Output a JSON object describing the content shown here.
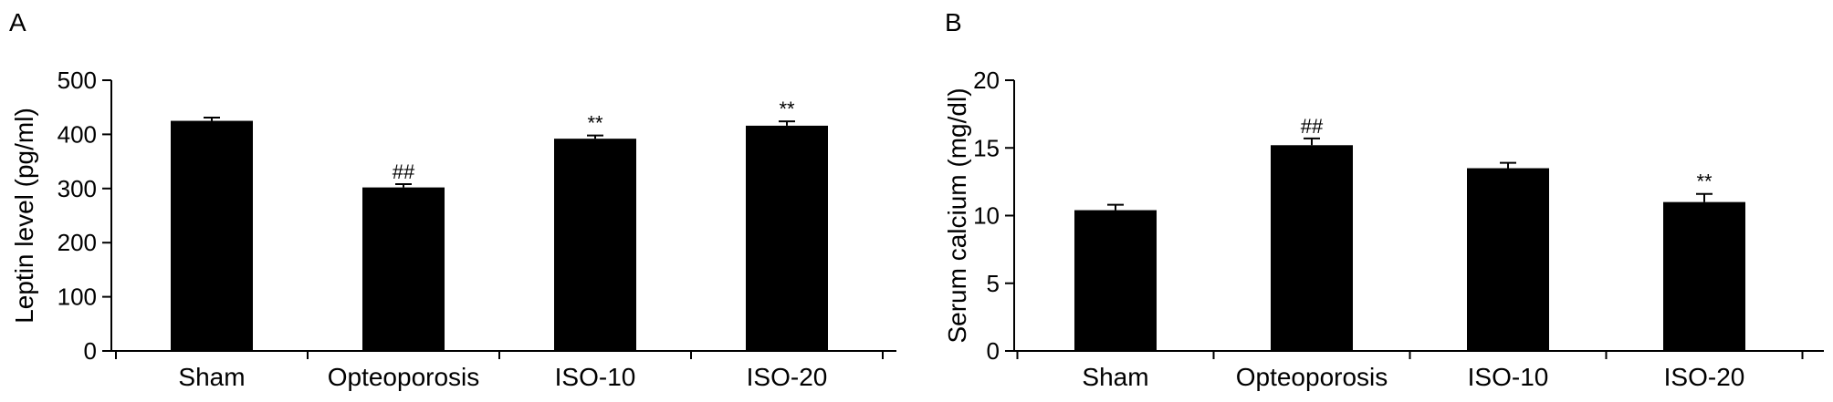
{
  "chart_data": [
    {
      "type": "bar",
      "panel_label": "A",
      "ylabel": "Leptin level (pg/ml)",
      "xlabel": "",
      "ylim": [
        0,
        500
      ],
      "yticks": [
        0,
        100,
        200,
        300,
        400,
        500
      ],
      "categories": [
        "Sham",
        "Opteoporosis",
        "ISO-10",
        "ISO-20"
      ],
      "values": [
        425,
        302,
        392,
        416
      ],
      "errors": [
        6,
        6,
        6,
        8
      ],
      "annotations": [
        "",
        "##",
        "**",
        "**"
      ],
      "bar_color": "#000000",
      "grid": false
    },
    {
      "type": "bar",
      "panel_label": "B",
      "ylabel": "Serum calcium (mg/dl)",
      "xlabel": "",
      "ylim": [
        0,
        20
      ],
      "yticks": [
        0,
        5,
        10,
        15,
        20
      ],
      "categories": [
        "Sham",
        "Opteoporosis",
        "ISO-10",
        "ISO-20"
      ],
      "values": [
        10.4,
        15.2,
        13.5,
        11.0
      ],
      "errors": [
        0.4,
        0.5,
        0.4,
        0.6
      ],
      "annotations": [
        "",
        "##",
        "",
        "**"
      ],
      "bar_color": "#000000",
      "grid": false
    }
  ]
}
